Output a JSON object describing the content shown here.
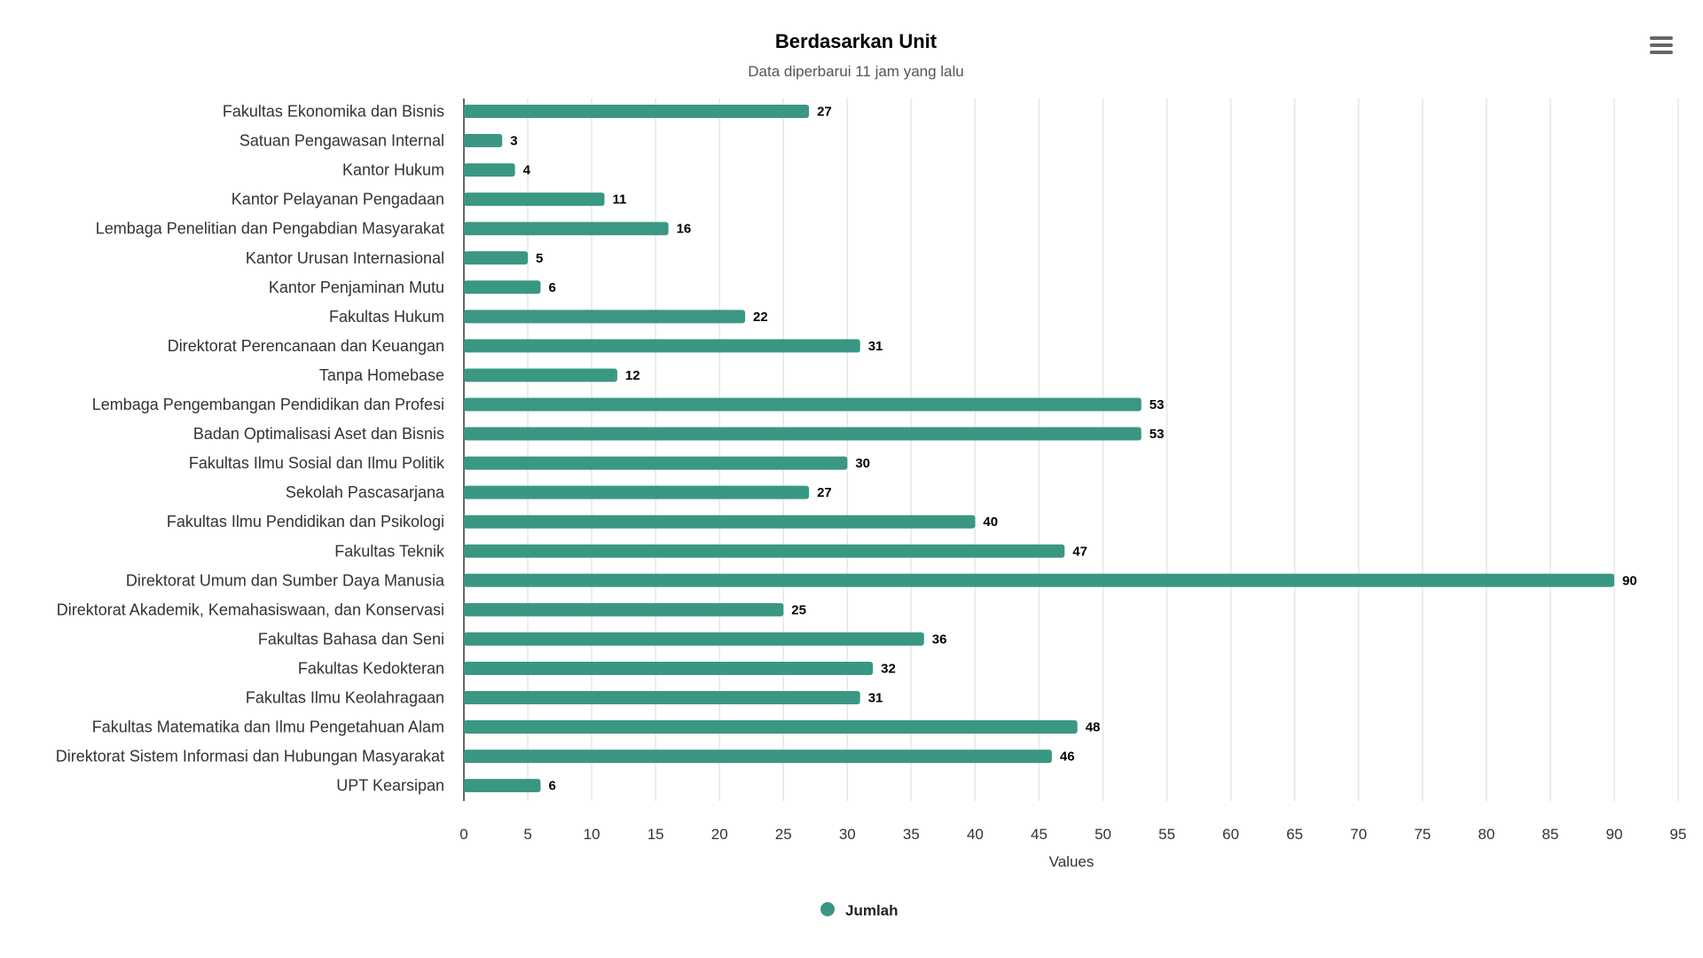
{
  "header": {
    "title": "Berdasarkan Unit",
    "subtitle": "Data diperbarui 11 jam yang lalu",
    "menu_icon": "hamburger-menu-icon"
  },
  "chart_data": {
    "type": "bar",
    "orientation": "horizontal",
    "title": "Berdasarkan Unit",
    "subtitle": "Data diperbarui 11 jam yang lalu",
    "xlabel": "Values",
    "ylabel": "",
    "xlim": [
      0,
      95
    ],
    "xticks": [
      0,
      5,
      10,
      15,
      20,
      25,
      30,
      35,
      40,
      45,
      50,
      55,
      60,
      65,
      70,
      75,
      80,
      85,
      90,
      95
    ],
    "grid": true,
    "legend_position": "bottom-center",
    "color": "#3a9784",
    "categories": [
      "Fakultas Ekonomika dan Bisnis",
      "Satuan Pengawasan Internal",
      "Kantor Hukum",
      "Kantor Pelayanan Pengadaan",
      "Lembaga Penelitian dan Pengabdian Masyarakat",
      "Kantor Urusan Internasional",
      "Kantor Penjaminan Mutu",
      "Fakultas Hukum",
      "Direktorat Perencanaan dan Keuangan",
      "Tanpa Homebase",
      "Lembaga Pengembangan Pendidikan dan Profesi",
      "Badan Optimalisasi Aset dan Bisnis",
      "Fakultas Ilmu Sosial dan Ilmu Politik",
      "Sekolah Pascasarjana",
      "Fakultas Ilmu Pendidikan dan Psikologi",
      "Fakultas Teknik",
      "Direktorat Umum dan Sumber Daya Manusia",
      "Direktorat Akademik, Kemahasiswaan, dan Konservasi",
      "Fakultas Bahasa dan Seni",
      "Fakultas Kedokteran",
      "Fakultas Ilmu Keolahragaan",
      "Fakultas Matematika dan Ilmu Pengetahuan Alam",
      "Direktorat Sistem Informasi dan Hubungan Masyarakat",
      "UPT Kearsipan"
    ],
    "series": [
      {
        "name": "Jumlah",
        "values": [
          27,
          3,
          4,
          11,
          16,
          5,
          6,
          22,
          31,
          12,
          53,
          53,
          30,
          27,
          40,
          47,
          90,
          25,
          36,
          32,
          31,
          48,
          46,
          6
        ]
      }
    ]
  }
}
